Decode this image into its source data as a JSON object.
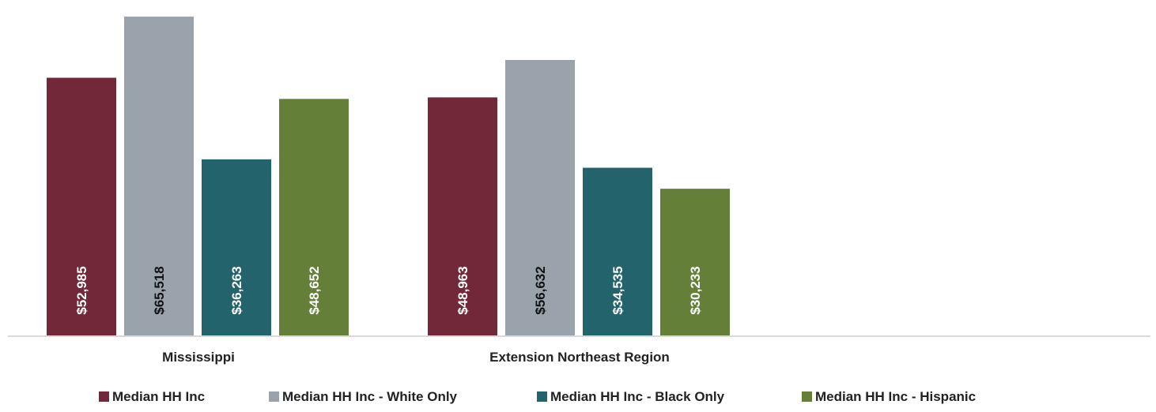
{
  "chart_data": {
    "type": "bar",
    "title": "",
    "xlabel": "",
    "ylabel": "",
    "categories": [
      "Mississippi",
      "Extension Northeast Region"
    ],
    "series": [
      {
        "name": "Median HH Inc",
        "color": "#722838",
        "label_color": "#ffffff",
        "values": [
          52985,
          48963
        ],
        "labels": [
          "$52,985",
          "$48,963"
        ]
      },
      {
        "name": "Median HH Inc - White Only",
        "color": "#9aa3ac",
        "label_color": "#111111",
        "values": [
          65518,
          56632
        ],
        "labels": [
          "$65,518",
          "$56,632"
        ]
      },
      {
        "name": "Median HH Inc - Black Only",
        "color": "#23646c",
        "label_color": "#ffffff",
        "values": [
          36263,
          34535
        ],
        "labels": [
          "$36,263",
          "$34,535"
        ]
      },
      {
        "name": "Median HH Inc - Hispanic",
        "color": "#647f38",
        "label_color": "#ffffff",
        "values": [
          48652,
          30233
        ],
        "labels": [
          "$48,652",
          "$30,233"
        ]
      }
    ],
    "ylim": [
      0,
      66500
    ],
    "grid": false,
    "legend_position": "bottom",
    "axis_color": "#d9d9d9"
  }
}
